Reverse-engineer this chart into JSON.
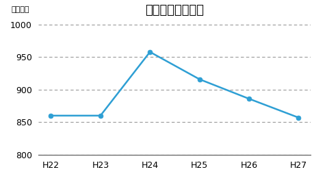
{
  "title": "将来負担額の推移",
  "ylabel": "（億円）",
  "categories": [
    "H22",
    "H23",
    "H24",
    "H25",
    "H26",
    "H27"
  ],
  "values": [
    860,
    860,
    958,
    916,
    886,
    857
  ],
  "line_color": "#2e9fd4",
  "marker": "o",
  "marker_size": 5,
  "ylim": [
    800,
    1010
  ],
  "yticks": [
    800,
    850,
    900,
    950,
    1000
  ],
  "grid_color": "#999999",
  "grid_linestyle": "--",
  "background_color": "#ffffff",
  "title_fontsize": 13,
  "axis_fontsize": 9,
  "ylabel_fontsize": 8
}
